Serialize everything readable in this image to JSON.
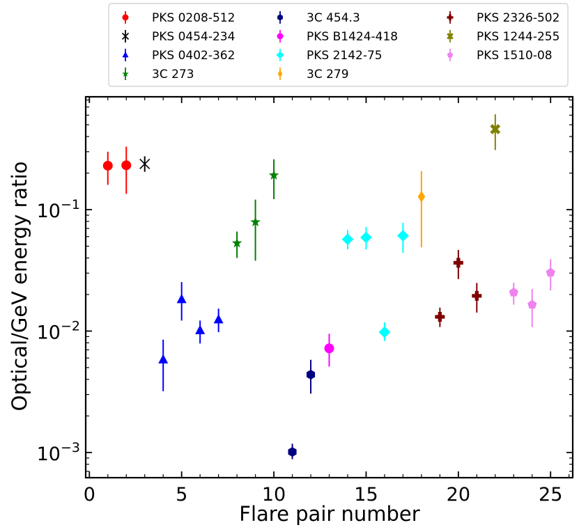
{
  "chart_data": {
    "type": "scatter",
    "xlabel": "Flare pair number",
    "ylabel": "Optical/GeV energy ratio",
    "xlim": [
      -0.2,
      26.2
    ],
    "ylim": [
      0.00062,
      0.85
    ],
    "yscale": "log",
    "x_ticks": [
      0,
      5,
      10,
      15,
      20,
      25
    ],
    "x_tick_labels": [
      "0",
      "5",
      "10",
      "15",
      "20",
      "25"
    ],
    "y_tick_labels": [
      {
        "base": "10",
        "exp": "−3",
        "value": 0.001
      },
      {
        "base": "10",
        "exp": "−2",
        "value": 0.01
      },
      {
        "base": "10",
        "exp": "−1",
        "value": 0.1
      }
    ],
    "legend_position": "top, above plot",
    "grid": false,
    "series": [
      {
        "name": "PKS 0208-512",
        "color": "#ff0000",
        "marker": "circle",
        "points": [
          {
            "x": 1,
            "y": 0.23,
            "lo": 0.16,
            "hi": 0.3
          },
          {
            "x": 2,
            "y": 0.232,
            "lo": 0.135,
            "hi": 0.33
          }
        ]
      },
      {
        "name": "PKS 0454-234",
        "color": "#000000",
        "marker": "x",
        "points": [
          {
            "x": 3,
            "y": 0.238,
            "lo": 0.205,
            "hi": 0.275
          }
        ]
      },
      {
        "name": "PKS 0402-362",
        "color": "#0000ff",
        "marker": "triangle",
        "points": [
          {
            "x": 4,
            "y": 0.0058,
            "lo": 0.0032,
            "hi": 0.0085
          },
          {
            "x": 5,
            "y": 0.0182,
            "lo": 0.0122,
            "hi": 0.0253
          },
          {
            "x": 6,
            "y": 0.0101,
            "lo": 0.0079,
            "hi": 0.0122
          },
          {
            "x": 7,
            "y": 0.0124,
            "lo": 0.0098,
            "hi": 0.0153
          }
        ]
      },
      {
        "name": "3C 273",
        "color": "#008000",
        "marker": "star",
        "points": [
          {
            "x": 8,
            "y": 0.053,
            "lo": 0.04,
            "hi": 0.066
          },
          {
            "x": 9,
            "y": 0.079,
            "lo": 0.038,
            "hi": 0.121
          },
          {
            "x": 10,
            "y": 0.192,
            "lo": 0.122,
            "hi": 0.26
          }
        ]
      },
      {
        "name": "3C 454.3",
        "color": "#000080",
        "marker": "hexagon",
        "points": [
          {
            "x": 11,
            "y": 0.00101,
            "lo": 0.00088,
            "hi": 0.00118
          },
          {
            "x": 12,
            "y": 0.00438,
            "lo": 0.00305,
            "hi": 0.0058
          }
        ]
      },
      {
        "name": "PKS B1424-418",
        "color": "#ff00ff",
        "marker": "circle",
        "points": [
          {
            "x": 13,
            "y": 0.0072,
            "lo": 0.0051,
            "hi": 0.0095
          }
        ]
      },
      {
        "name": "PKS 2142-75",
        "color": "#00ffff",
        "marker": "diamond",
        "points": [
          {
            "x": 14,
            "y": 0.057,
            "lo": 0.047,
            "hi": 0.068
          },
          {
            "x": 15,
            "y": 0.059,
            "lo": 0.047,
            "hi": 0.072
          },
          {
            "x": 16,
            "y": 0.0098,
            "lo": 0.0083,
            "hi": 0.0118
          },
          {
            "x": 17,
            "y": 0.061,
            "lo": 0.044,
            "hi": 0.078
          }
        ]
      },
      {
        "name": "3C 279",
        "color": "#ffa500",
        "marker": "thin-diamond",
        "points": [
          {
            "x": 18,
            "y": 0.128,
            "lo": 0.049,
            "hi": 0.208
          }
        ]
      },
      {
        "name": "PKS 2326-502",
        "color": "#800000",
        "marker": "plus-filled",
        "points": [
          {
            "x": 19,
            "y": 0.0131,
            "lo": 0.0108,
            "hi": 0.0156
          },
          {
            "x": 20,
            "y": 0.0365,
            "lo": 0.0268,
            "hi": 0.0466
          },
          {
            "x": 21,
            "y": 0.0195,
            "lo": 0.0142,
            "hi": 0.0249
          }
        ]
      },
      {
        "name": "PKS 1244-255",
        "color": "#808000",
        "marker": "x-filled",
        "points": [
          {
            "x": 22,
            "y": 0.46,
            "lo": 0.31,
            "hi": 0.61
          }
        ]
      },
      {
        "name": "PKS 1510-08",
        "color": "#ee82ee",
        "marker": "pentagon",
        "points": [
          {
            "x": 23,
            "y": 0.0208,
            "lo": 0.0165,
            "hi": 0.025
          },
          {
            "x": 24,
            "y": 0.0165,
            "lo": 0.0108,
            "hi": 0.0222
          },
          {
            "x": 25,
            "y": 0.0303,
            "lo": 0.0216,
            "hi": 0.0391
          }
        ]
      }
    ]
  }
}
